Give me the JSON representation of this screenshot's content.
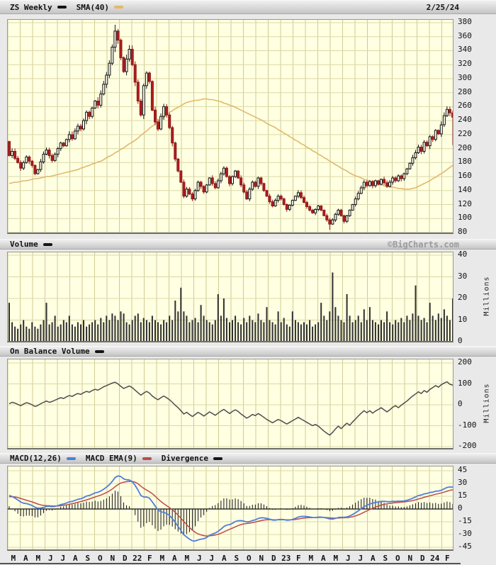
{
  "header": {
    "symbol_label": "ZS Weekly",
    "sma_label": "SMA(40)",
    "date": "2/25/24"
  },
  "panels": {
    "volume": {
      "label": "Volume",
      "unit": "Millions"
    },
    "obv": {
      "label": "On Balance Volume",
      "unit": "Millions"
    },
    "macd": {
      "macd_label": "MACD(12,26)",
      "ema_label": "MACD EMA(9)",
      "divergence_label": "Divergence"
    }
  },
  "watermark": "©BigCharts.com",
  "colors": {
    "plot_bg": "#FFFFE2",
    "grid_h": "#DCD8A6",
    "grid_v": "#CFCB96",
    "sma": "#E2B96A",
    "up_fill": "#F7F7EA",
    "up_stroke": "#151515",
    "down_fill": "#B01E1E",
    "down_stroke": "#8F1818",
    "volume_bar": "#2F2F2F",
    "obv_line": "#4D4D4D",
    "macd_line": "#4F7EDB",
    "signal_line": "#BE4B48",
    "histogram": "#111111",
    "zero_line": "#111111"
  },
  "chart_data": [
    {
      "type": "candlestick",
      "symbol": "ZS",
      "interval": "Weekly",
      "overlay": "SMA(40)",
      "ylim": [
        80,
        380
      ],
      "yticks": [
        380,
        360,
        340,
        320,
        300,
        280,
        260,
        240,
        220,
        200,
        180,
        160,
        140,
        120,
        100,
        80
      ],
      "x_labels": [
        "M",
        "A",
        "M",
        "J",
        "J",
        "A",
        "S",
        "O",
        "N",
        "D",
        "22",
        "F",
        "M",
        "A",
        "M",
        "J",
        "J",
        "A",
        "S",
        "O",
        "N",
        "D",
        "23",
        "F",
        "M",
        "A",
        "M",
        "J",
        "J",
        "A",
        "S",
        "O",
        "N",
        "D",
        "24",
        "F"
      ],
      "first_open": 210,
      "closes": [
        190,
        196,
        186,
        180,
        172,
        180,
        188,
        182,
        176,
        164,
        170,
        181,
        192,
        198,
        190,
        183,
        192,
        200,
        208,
        204,
        213,
        220,
        214,
        225,
        232,
        228,
        240,
        252,
        246,
        258,
        268,
        262,
        278,
        292,
        305,
        322,
        345,
        368,
        355,
        330,
        310,
        328,
        342,
        320,
        295,
        268,
        248,
        290,
        308,
        296,
        255,
        238,
        228,
        246,
        260,
        248,
        230,
        208,
        185,
        168,
        152,
        132,
        142,
        135,
        128,
        140,
        152,
        146,
        138,
        148,
        158,
        150,
        144,
        154,
        164,
        172,
        160,
        150,
        160,
        168,
        158,
        148,
        138,
        128,
        142,
        152,
        146,
        158,
        150,
        140,
        132,
        124,
        118,
        126,
        132,
        128,
        120,
        113,
        119,
        126,
        132,
        137,
        130,
        123,
        117,
        112,
        108,
        113,
        118,
        112,
        104,
        98,
        92,
        98,
        106,
        112,
        104,
        96,
        104,
        112,
        120,
        128,
        136,
        144,
        152,
        147,
        153,
        147,
        154,
        149,
        156,
        151,
        146,
        152,
        158,
        154,
        161,
        157,
        164,
        171,
        179,
        187,
        194,
        202,
        196,
        209,
        204,
        217,
        213,
        226,
        221,
        234,
        247,
        256,
        251,
        245
      ],
      "high_overrides": {
        "37": 377
      },
      "low_overrides": {
        "112": 84,
        "155": 205
      },
      "sma40": [
        150,
        151,
        152,
        152,
        153,
        154,
        154,
        155,
        156,
        157,
        157,
        158,
        159,
        160,
        160,
        161,
        162,
        163,
        164,
        165,
        166,
        167,
        168,
        169,
        170,
        172,
        173,
        175,
        176,
        178,
        179,
        181,
        182,
        184,
        187,
        189,
        191,
        194,
        196,
        199,
        201,
        204,
        207,
        209,
        212,
        215,
        219,
        222,
        225,
        229,
        232,
        235,
        239,
        242,
        245,
        249,
        252,
        254,
        257,
        259,
        261,
        264,
        266,
        267,
        268,
        269,
        269,
        270,
        271,
        271,
        270,
        270,
        269,
        268,
        267,
        265,
        264,
        262,
        261,
        259,
        257,
        255,
        253,
        251,
        249,
        247,
        245,
        243,
        241,
        239,
        236,
        234,
        232,
        230,
        227,
        225,
        222,
        220,
        217,
        215,
        212,
        210,
        207,
        205,
        202,
        200,
        197,
        195,
        192,
        190,
        187,
        185,
        182,
        180,
        177,
        175,
        172,
        170,
        168,
        165,
        163,
        161,
        160,
        158,
        156,
        155,
        153,
        152,
        150,
        149,
        148,
        147,
        146,
        145,
        145,
        144,
        143,
        143,
        142,
        142,
        142,
        143,
        144,
        146,
        148,
        150,
        152,
        154,
        157,
        159,
        162,
        164,
        167,
        170,
        173,
        176
      ]
    },
    {
      "type": "bar",
      "title": "Volume",
      "ylabel": "Millions",
      "ylim": [
        0,
        40
      ],
      "yticks": [
        40,
        30,
        20,
        10,
        0
      ],
      "values": [
        18,
        9,
        7,
        6,
        8,
        10,
        7,
        6,
        9,
        7,
        6,
        8,
        10,
        18,
        8,
        9,
        12,
        7,
        8,
        10,
        9,
        12,
        8,
        7,
        9,
        8,
        10,
        7,
        8,
        9,
        10,
        8,
        11,
        9,
        12,
        10,
        13,
        12,
        10,
        14,
        13,
        9,
        8,
        10,
        12,
        13,
        9,
        11,
        10,
        9,
        12,
        10,
        9,
        8,
        10,
        9,
        12,
        10,
        19,
        14,
        25,
        14,
        12,
        9,
        10,
        11,
        9,
        17,
        12,
        10,
        9,
        8,
        10,
        22,
        12,
        20,
        11,
        9,
        10,
        12,
        9,
        8,
        11,
        9,
        12,
        10,
        9,
        13,
        10,
        9,
        16,
        10,
        9,
        8,
        14,
        9,
        11,
        8,
        7,
        14,
        10,
        9,
        8,
        9,
        8,
        10,
        7,
        8,
        9,
        18,
        12,
        10,
        14,
        32,
        16,
        12,
        10,
        9,
        22,
        12,
        9,
        10,
        12,
        9,
        15,
        10,
        16,
        10,
        9,
        8,
        10,
        9,
        14,
        9,
        8,
        10,
        9,
        11,
        9,
        12,
        10,
        13,
        26,
        12,
        10,
        11,
        9,
        18,
        12,
        10,
        13,
        11,
        15,
        12,
        10,
        20
      ]
    },
    {
      "type": "line",
      "title": "On Balance Volume",
      "ylabel": "Millions",
      "ylim": [
        -200,
        200
      ],
      "yticks": [
        200,
        100,
        0,
        -100,
        -200
      ],
      "values": [
        5,
        12,
        8,
        2,
        -4,
        3,
        10,
        6,
        0,
        -8,
        -3,
        5,
        12,
        18,
        12,
        16,
        22,
        28,
        34,
        30,
        38,
        44,
        40,
        48,
        54,
        50,
        58,
        64,
        60,
        68,
        74,
        70,
        78,
        86,
        92,
        98,
        104,
        108,
        100,
        88,
        78,
        84,
        90,
        82,
        70,
        58,
        46,
        56,
        64,
        56,
        42,
        32,
        24,
        34,
        42,
        34,
        24,
        12,
        -2,
        -14,
        -28,
        -44,
        -36,
        -46,
        -56,
        -46,
        -36,
        -44,
        -54,
        -44,
        -34,
        -42,
        -50,
        -40,
        -30,
        -22,
        -32,
        -42,
        -32,
        -24,
        -32,
        -44,
        -54,
        -64,
        -56,
        -46,
        -52,
        -42,
        -50,
        -60,
        -70,
        -78,
        -86,
        -78,
        -70,
        -76,
        -84,
        -92,
        -84,
        -76,
        -68,
        -60,
        -68,
        -76,
        -84,
        -92,
        -100,
        -94,
        -102,
        -114,
        -126,
        -136,
        -145,
        -132,
        -116,
        -102,
        -114,
        -100,
        -88,
        -98,
        -82,
        -68,
        -54,
        -40,
        -28,
        -38,
        -28,
        -40,
        -30,
        -22,
        -14,
        -24,
        -34,
        -24,
        -12,
        -4,
        -14,
        -2,
        8,
        18,
        30,
        42,
        52,
        62,
        54,
        68,
        60,
        74,
        82,
        92,
        84,
        96,
        104,
        110,
        98,
        94
      ]
    },
    {
      "type": "macd",
      "title": "MACD(12,26) / MACD EMA(9) / Divergence",
      "params": {
        "fast": 12,
        "slow": 26,
        "signal": 9
      },
      "derived_from": "price closes",
      "seed": {
        "ema_fast": 198,
        "ema_slow": 180,
        "signal": 14
      },
      "ylim": [
        -45,
        45
      ],
      "yticks": [
        45,
        30,
        15,
        0,
        -15,
        -30,
        -45
      ]
    }
  ]
}
